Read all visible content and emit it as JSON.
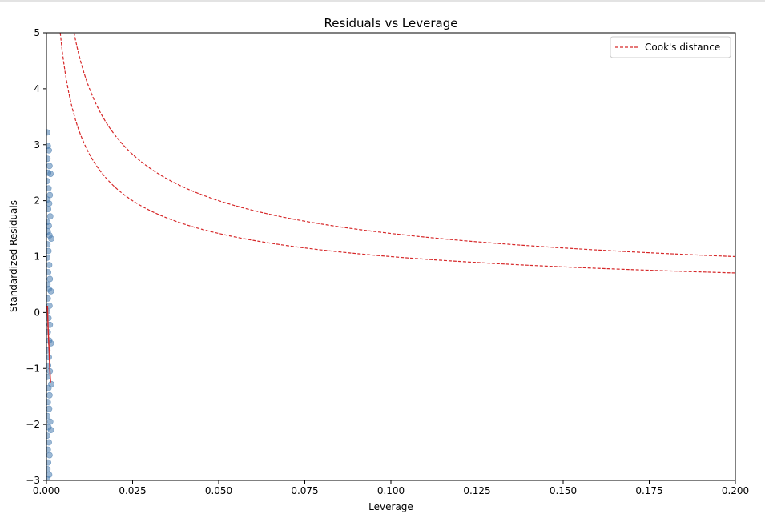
{
  "chart_data": {
    "type": "scatter",
    "title": "Residuals vs Leverage",
    "xlabel": "Leverage",
    "ylabel": "Standardized Residuals",
    "xlim": [
      0.0,
      0.2
    ],
    "ylim": [
      -3,
      5
    ],
    "x_ticks": [
      "0.000",
      "0.025",
      "0.050",
      "0.075",
      "0.100",
      "0.125",
      "0.150",
      "0.175",
      "0.200"
    ],
    "x_tick_values": [
      0.0,
      0.025,
      0.05,
      0.075,
      0.1,
      0.125,
      0.15,
      0.175,
      0.2
    ],
    "y_ticks": [
      "−3",
      "−2",
      "−1",
      "0",
      "1",
      "2",
      "3",
      "4",
      "5"
    ],
    "y_tick_values": [
      -3,
      -2,
      -1,
      0,
      1,
      2,
      3,
      4,
      5
    ],
    "grid": false,
    "legend": {
      "position": "top-right",
      "entries": [
        "Cook's distance"
      ]
    },
    "point_color": "#4a7eb0",
    "cook_color": "#d62728",
    "lowess_color": "#d62728",
    "points": [
      [
        0.0002,
        3.22
      ],
      [
        0.0004,
        2.98
      ],
      [
        0.0007,
        2.9
      ],
      [
        0.0003,
        2.75
      ],
      [
        0.0009,
        2.62
      ],
      [
        0.0005,
        2.5
      ],
      [
        0.0012,
        2.48
      ],
      [
        0.0002,
        2.35
      ],
      [
        0.0006,
        2.22
      ],
      [
        0.001,
        2.1
      ],
      [
        0.0003,
        2.02
      ],
      [
        0.0008,
        1.95
      ],
      [
        0.0005,
        1.85
      ],
      [
        0.0011,
        1.72
      ],
      [
        0.0002,
        1.62
      ],
      [
        0.0007,
        1.55
      ],
      [
        0.0004,
        1.45
      ],
      [
        0.0009,
        1.38
      ],
      [
        0.0014,
        1.32
      ],
      [
        0.0003,
        1.22
      ],
      [
        0.0006,
        1.1
      ],
      [
        0.0002,
        0.98
      ],
      [
        0.0008,
        0.85
      ],
      [
        0.0005,
        0.72
      ],
      [
        0.001,
        0.6
      ],
      [
        0.0003,
        0.5
      ],
      [
        0.0007,
        0.42
      ],
      [
        0.0013,
        0.38
      ],
      [
        0.0004,
        0.25
      ],
      [
        0.0009,
        0.12
      ],
      [
        0.0002,
        0.02
      ],
      [
        0.0006,
        -0.1
      ],
      [
        0.001,
        -0.22
      ],
      [
        0.0004,
        -0.35
      ],
      [
        0.0008,
        -0.5
      ],
      [
        0.0013,
        -0.55
      ],
      [
        0.0003,
        -0.68
      ],
      [
        0.0007,
        -0.8
      ],
      [
        0.0005,
        -0.95
      ],
      [
        0.001,
        -1.05
      ],
      [
        0.0002,
        -1.15
      ],
      [
        0.0014,
        -1.28
      ],
      [
        0.0006,
        -1.35
      ],
      [
        0.0009,
        -1.48
      ],
      [
        0.0004,
        -1.6
      ],
      [
        0.0008,
        -1.72
      ],
      [
        0.0003,
        -1.85
      ],
      [
        0.0011,
        -1.95
      ],
      [
        0.0006,
        -2.05
      ],
      [
        0.0013,
        -2.1
      ],
      [
        0.0002,
        -2.2
      ],
      [
        0.0007,
        -2.32
      ],
      [
        0.0004,
        -2.45
      ],
      [
        0.0009,
        -2.55
      ],
      [
        0.0005,
        -2.68
      ],
      [
        0.0003,
        -2.8
      ],
      [
        0.0008,
        -2.9
      ],
      [
        0.0002,
        -2.97
      ]
    ],
    "cook_lines": [
      {
        "k": 0.1,
        "note": "Cook's distance 0.5 contour"
      },
      {
        "k": 0.2,
        "note": "Cook's distance 1.0 contour"
      }
    ],
    "lowess": [
      [
        0.0003,
        0.12
      ],
      [
        0.0005,
        -0.3
      ],
      [
        0.0008,
        -0.7
      ],
      [
        0.001,
        -1.05
      ],
      [
        0.0012,
        -1.25
      ]
    ]
  }
}
